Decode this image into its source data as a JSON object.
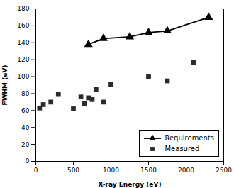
{
  "chart_data": {
    "type": "line",
    "xlabel": "X-ray Energy (eV)",
    "ylabel": "FWHM (eV)",
    "xlim": [
      0,
      2500
    ],
    "ylim": [
      0,
      180
    ],
    "xticks": [
      0,
      500,
      1000,
      1500,
      2000,
      2500
    ],
    "yticks": [
      0,
      20,
      40,
      60,
      80,
      100,
      120,
      140,
      160,
      180
    ],
    "grid": false,
    "legend": "lower right",
    "series": [
      {
        "name": "Requirements",
        "type": "line",
        "color": "#000000",
        "marker": "triangle",
        "x": [
          700,
          900,
          1250,
          1500,
          1750,
          2300
        ],
        "values": [
          138,
          145,
          147,
          152,
          154,
          170
        ]
      },
      {
        "name": "Measured",
        "type": "scatter",
        "color": "#2b2b2b",
        "marker": "square",
        "x": [
          50,
          100,
          200,
          300,
          500,
          600,
          650,
          700,
          750,
          800,
          900,
          1000,
          1500,
          1750,
          2100
        ],
        "values": [
          63,
          67,
          70,
          79,
          62,
          76,
          68,
          75,
          73,
          85,
          70,
          91,
          100,
          95,
          117
        ]
      }
    ]
  }
}
